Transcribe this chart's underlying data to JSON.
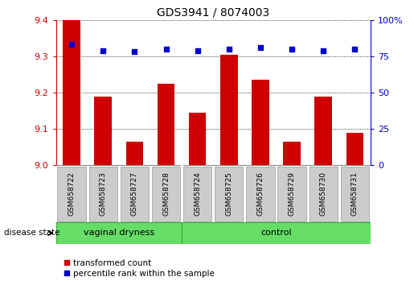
{
  "title": "GDS3941 / 8074003",
  "samples": [
    "GSM658722",
    "GSM658723",
    "GSM658727",
    "GSM658728",
    "GSM658724",
    "GSM658725",
    "GSM658726",
    "GSM658729",
    "GSM658730",
    "GSM658731"
  ],
  "bar_values": [
    9.4,
    9.19,
    9.065,
    9.225,
    9.145,
    9.305,
    9.235,
    9.065,
    9.19,
    9.09
  ],
  "percentile_values": [
    83,
    79,
    78,
    80,
    79,
    80,
    81,
    80,
    79,
    80
  ],
  "ylim_left": [
    9.0,
    9.4
  ],
  "ylim_right": [
    0,
    100
  ],
  "yticks_left": [
    9.0,
    9.1,
    9.2,
    9.3,
    9.4
  ],
  "yticks_right": [
    0,
    25,
    50,
    75,
    100
  ],
  "bar_color": "#cc0000",
  "dot_color": "#0000cc",
  "grid_color": "#000000",
  "group1_label": "vaginal dryness",
  "group2_label": "control",
  "group_color": "#66dd66",
  "group_border_color": "#33aa33",
  "sample_box_color": "#cccccc",
  "sample_box_border": "#999999",
  "disease_state_label": "disease state",
  "group1_count": 4,
  "group2_count": 6,
  "legend_bar_label": "transformed count",
  "legend_dot_label": "percentile rank within the sample",
  "bar_width": 0.55,
  "figsize": [
    5.15,
    3.54
  ],
  "dpi": 100
}
